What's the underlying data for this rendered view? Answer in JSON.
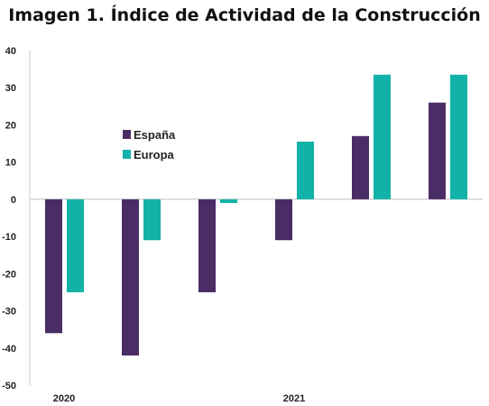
{
  "chart_data": {
    "type": "bar",
    "title": "Imagen 1. Índice de Actividad de la Construcción",
    "categories": [
      "",
      "",
      "",
      "",
      "",
      ""
    ],
    "x_group_labels": [
      {
        "label": "2020",
        "position": 0
      },
      {
        "label": "2021",
        "position": 3
      }
    ],
    "series": [
      {
        "name": "España",
        "color": "#4b2d66",
        "values": [
          -36,
          -42,
          -25,
          -11,
          17,
          26
        ]
      },
      {
        "name": "Europa",
        "color": "#13b2a8",
        "values": [
          -25,
          -11,
          -1,
          15.5,
          33.5,
          33.5
        ]
      }
    ],
    "ylim": [
      -50,
      40
    ],
    "yticks": [
      40,
      30,
      20,
      10,
      0,
      -10,
      -20,
      -30,
      -40,
      -50
    ],
    "grid": false,
    "legend_position": "center-left"
  }
}
